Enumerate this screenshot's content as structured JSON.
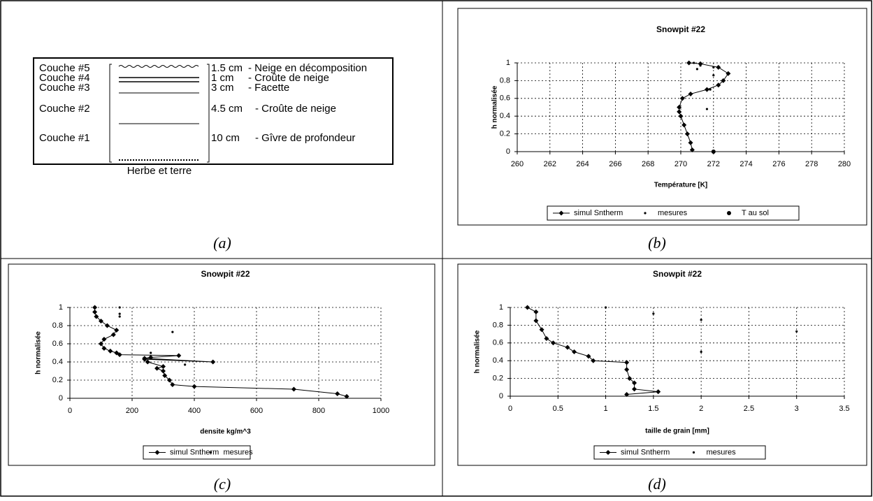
{
  "diagram": {
    "layers": [
      {
        "name": "Couche #5",
        "thickness": "1.5 cm",
        "description": "- Neige en décomposition"
      },
      {
        "name": "Couche #4",
        "thickness": "1 cm",
        "description": "- Croûte de neige"
      },
      {
        "name": "Couche #3",
        "thickness": "3 cm",
        "description": "- Facette"
      },
      {
        "name": "Couche #2",
        "thickness": "4.5 cm",
        "description": "- Croûte de neige"
      },
      {
        "name": "Couche #1",
        "thickness": "10 cm",
        "description": "- Gîvre de profondeur"
      }
    ],
    "ground": "Herbe et terre"
  },
  "panel_labels": [
    "(a)",
    "(b)",
    "(c)",
    "(d)"
  ],
  "chart_data": [
    {
      "type": "scatter",
      "title": "Snowpit #22",
      "x_label": "Température [K]",
      "y_label": "h normalisée",
      "xlim": [
        260,
        280
      ],
      "xticks": [
        260,
        262,
        264,
        266,
        268,
        270,
        272,
        274,
        276,
        278,
        280
      ],
      "ylim": [
        0,
        1
      ],
      "yticks": [
        0,
        0.2,
        0.4,
        0.6,
        0.8,
        1
      ],
      "grid": true,
      "legend": "bottom",
      "series": [
        {
          "name": "simul Sntherm",
          "color": "#000000",
          "style": "line",
          "x": [
            270.7,
            270.6,
            270.4,
            270.2,
            270.0,
            269.9,
            269.9,
            270.1,
            270.6,
            271.6,
            272.3,
            272.6,
            272.9,
            272.3,
            271.2,
            270.5
          ],
          "values": [
            0.02,
            0.1,
            0.2,
            0.3,
            0.4,
            0.45,
            0.5,
            0.6,
            0.65,
            0.7,
            0.75,
            0.8,
            0.88,
            0.95,
            0.99,
            1.0
          ]
        },
        {
          "name": "mesures",
          "color": "#000000",
          "style": "dot",
          "x": [
            270.8,
            271.2,
            272.0,
            271.0,
            272.0,
            271.8,
            271.6
          ],
          "values": [
            1.0,
            0.97,
            0.95,
            0.93,
            0.86,
            0.7,
            0.48
          ]
        },
        {
          "name": "T au sol",
          "color": "#000000",
          "style": "big-dot",
          "x": [
            272.0
          ],
          "values": [
            0.0
          ]
        }
      ]
    },
    {
      "type": "scatter",
      "title": "Snowpit #22",
      "x_label": "densite kg/m^3",
      "y_label": "h normalisée",
      "xlim": [
        0,
        1000
      ],
      "xticks": [
        0,
        200,
        400,
        600,
        800,
        1000
      ],
      "ylim": [
        0,
        1
      ],
      "yticks": [
        0,
        0.2,
        0.4,
        0.6,
        0.8,
        1
      ],
      "grid": true,
      "legend": "bottom",
      "series": [
        {
          "name": "simul Sntherm",
          "color": "#000000",
          "style": "line",
          "x": [
            890,
            860,
            720,
            400,
            330,
            320,
            305,
            300,
            280,
            300,
            250,
            240,
            460,
            240,
            260,
            350,
            160,
            150,
            130,
            110,
            100,
            110,
            140,
            150,
            120,
            100,
            85,
            80,
            80
          ],
          "values": [
            0.02,
            0.05,
            0.1,
            0.13,
            0.15,
            0.2,
            0.25,
            0.3,
            0.33,
            0.35,
            0.4,
            0.43,
            0.4,
            0.44,
            0.45,
            0.47,
            0.48,
            0.5,
            0.52,
            0.55,
            0.6,
            0.65,
            0.7,
            0.75,
            0.8,
            0.85,
            0.9,
            0.95,
            1.0
          ]
        },
        {
          "name": "mesures",
          "color": "#000000",
          "style": "dot",
          "x": [
            160,
            160,
            160,
            330,
            260,
            370
          ],
          "values": [
            1.0,
            0.93,
            0.9,
            0.73,
            0.5,
            0.37
          ]
        }
      ]
    },
    {
      "type": "scatter",
      "title": "Snowpit #22",
      "x_label": "taille de grain [mm]",
      "y_label": "h normalisée",
      "xlim": [
        0,
        3.5
      ],
      "xticks": [
        0,
        0.5,
        1,
        1.5,
        2,
        2.5,
        3,
        3.5
      ],
      "ylim": [
        0,
        1
      ],
      "yticks": [
        0,
        0.2,
        0.4,
        0.6,
        0.8,
        1
      ],
      "grid": true,
      "legend": "bottom",
      "series": [
        {
          "name": "simul Sntherm",
          "color": "#000000",
          "style": "line",
          "x": [
            1.22,
            1.55,
            1.3,
            1.3,
            1.25,
            1.22,
            1.22,
            0.87,
            0.82,
            0.67,
            0.6,
            0.45,
            0.38,
            0.33,
            0.27,
            0.27,
            0.18
          ],
          "values": [
            0.02,
            0.05,
            0.08,
            0.15,
            0.2,
            0.3,
            0.38,
            0.4,
            0.45,
            0.5,
            0.55,
            0.6,
            0.65,
            0.75,
            0.85,
            0.95,
            1.0
          ]
        },
        {
          "name": "mesures",
          "color": "#000000",
          "style": "dot",
          "x": [
            1,
            1.5,
            2,
            3,
            2
          ],
          "values": [
            1.0,
            0.93,
            0.86,
            0.73,
            0.5
          ]
        }
      ]
    }
  ]
}
